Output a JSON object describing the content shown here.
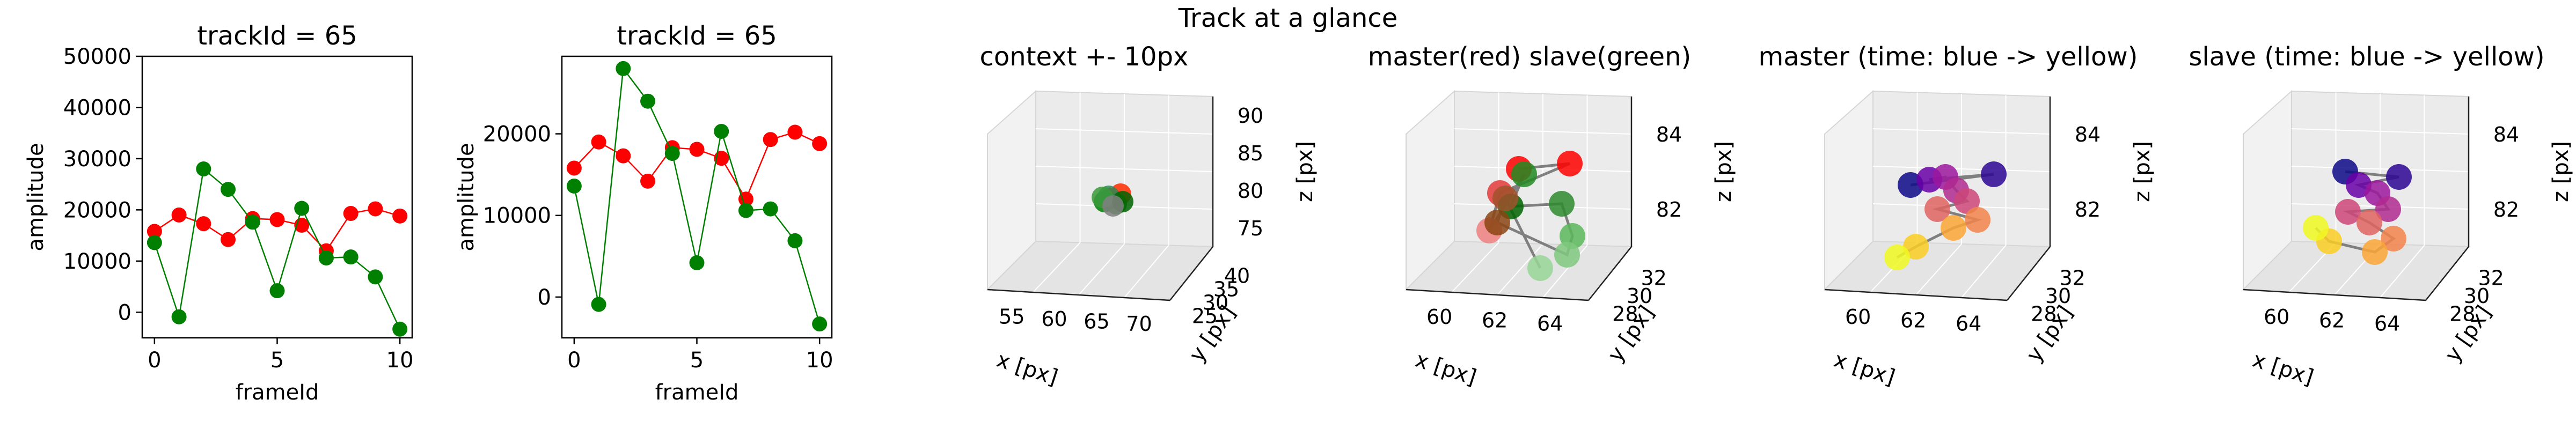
{
  "suptitle": "Track at a glance",
  "chart_data": [
    {
      "type": "line",
      "title": "trackId = 65",
      "xlabel": "frameId",
      "ylabel": "amplitude",
      "xlim": [
        -0.5,
        10.5
      ],
      "ylim": [
        -5000,
        50000
      ],
      "xticks": [
        0,
        5,
        10
      ],
      "yticks": [
        0,
        10000,
        20000,
        30000,
        40000,
        50000
      ],
      "x": [
        0,
        1,
        2,
        3,
        4,
        5,
        6,
        7,
        8,
        9,
        10
      ],
      "series": [
        {
          "color": "#ff0000",
          "values": [
            15800,
            19000,
            17300,
            14200,
            18300,
            18100,
            17000,
            12000,
            19300,
            20200,
            18800
          ]
        },
        {
          "color": "#008000",
          "values": [
            13600,
            -900,
            28000,
            24000,
            17600,
            4200,
            20300,
            10600,
            10800,
            6900,
            -3300
          ]
        }
      ]
    },
    {
      "type": "line",
      "title": "trackId = 65",
      "xlabel": "frameId",
      "ylabel": "amplitude",
      "xlim": [
        -0.5,
        10.5
      ],
      "ylim": [
        -5000,
        29500
      ],
      "xticks": [
        0,
        5,
        10
      ],
      "yticks": [
        0,
        10000,
        20000
      ],
      "x": [
        0,
        1,
        2,
        3,
        4,
        5,
        6,
        7,
        8,
        9,
        10
      ],
      "series": [
        {
          "color": "#ff0000",
          "values": [
            15800,
            19000,
            17300,
            14200,
            18300,
            18100,
            17000,
            12000,
            19300,
            20200,
            18800
          ]
        },
        {
          "color": "#008000",
          "values": [
            13600,
            -900,
            28000,
            24000,
            17600,
            4200,
            20300,
            10600,
            10800,
            6900,
            -3300
          ]
        }
      ]
    },
    {
      "type": "scatter",
      "title": "context +- 10px",
      "xlabel": "x [px]",
      "ylabel": "y [px]",
      "zlabel": "z [px]",
      "xticks": [
        "55",
        "60",
        "65",
        "70"
      ],
      "yticks": [
        "25",
        "30",
        "35",
        "40"
      ],
      "zticks": [
        "75",
        "80",
        "85",
        "90"
      ],
      "points": [
        {
          "color": "#ff0000"
        },
        {
          "color": "#ff2a00"
        },
        {
          "color": "#008000"
        },
        {
          "color": "#1f8b1f"
        },
        {
          "color": "#2e8b57"
        },
        {
          "color": "#006400"
        },
        {
          "color": "#3a9a3a"
        },
        {
          "color": "#808080"
        }
      ]
    },
    {
      "type": "scatter",
      "title": "master(red) slave(green)",
      "xlabel": "x [px]",
      "ylabel": "y [px]",
      "zlabel": "z [px]",
      "xticks": [
        "60",
        "62",
        "64"
      ],
      "yticks": [
        "28",
        "30",
        "32"
      ],
      "zticks": [
        "82",
        "84"
      ],
      "points": [
        {
          "color": "#ff0000"
        },
        {
          "color": "#ff0000"
        },
        {
          "color": "#e33b3b"
        },
        {
          "color": "#f08080"
        },
        {
          "color": "#228b22"
        },
        {
          "color": "#006400"
        },
        {
          "color": "#2e8b2e"
        },
        {
          "color": "#5cb85c"
        },
        {
          "color": "#7fc97f"
        },
        {
          "color": "#8b4513"
        },
        {
          "color": "#a0522d"
        },
        {
          "color": "#98d698"
        }
      ]
    },
    {
      "type": "scatter",
      "title": "master (time: blue -> yellow)",
      "xlabel": "x [px]",
      "ylabel": "y [px]",
      "zlabel": "z [px]",
      "xticks": [
        "60",
        "62",
        "64"
      ],
      "yticks": [
        "28",
        "30",
        "32"
      ],
      "zticks": [
        "82",
        "84"
      ],
      "points": [
        {
          "color": "#0d0887"
        },
        {
          "color": "#2c0594"
        },
        {
          "color": "#6a00a8"
        },
        {
          "color": "#9c179e"
        },
        {
          "color": "#b12a90"
        },
        {
          "color": "#cc4778"
        },
        {
          "color": "#e16462"
        },
        {
          "color": "#f2844b"
        },
        {
          "color": "#fca636"
        },
        {
          "color": "#fcce25"
        },
        {
          "color": "#f0f921"
        }
      ]
    },
    {
      "type": "scatter",
      "title": "slave (time: blue -> yellow)",
      "xlabel": "x [px]",
      "ylabel": "y [px]",
      "zlabel": "z [px]",
      "xticks": [
        "60",
        "62",
        "64"
      ],
      "yticks": [
        "28",
        "30",
        "32"
      ],
      "zticks": [
        "82",
        "84"
      ],
      "points": [
        {
          "color": "#0d0887"
        },
        {
          "color": "#2c0594"
        },
        {
          "color": "#6a00a8"
        },
        {
          "color": "#9c179e"
        },
        {
          "color": "#b12a90"
        },
        {
          "color": "#cc4778"
        },
        {
          "color": "#e16462"
        },
        {
          "color": "#f2844b"
        },
        {
          "color": "#fca636"
        },
        {
          "color": "#fcce25"
        },
        {
          "color": "#f0f921"
        }
      ]
    }
  ]
}
